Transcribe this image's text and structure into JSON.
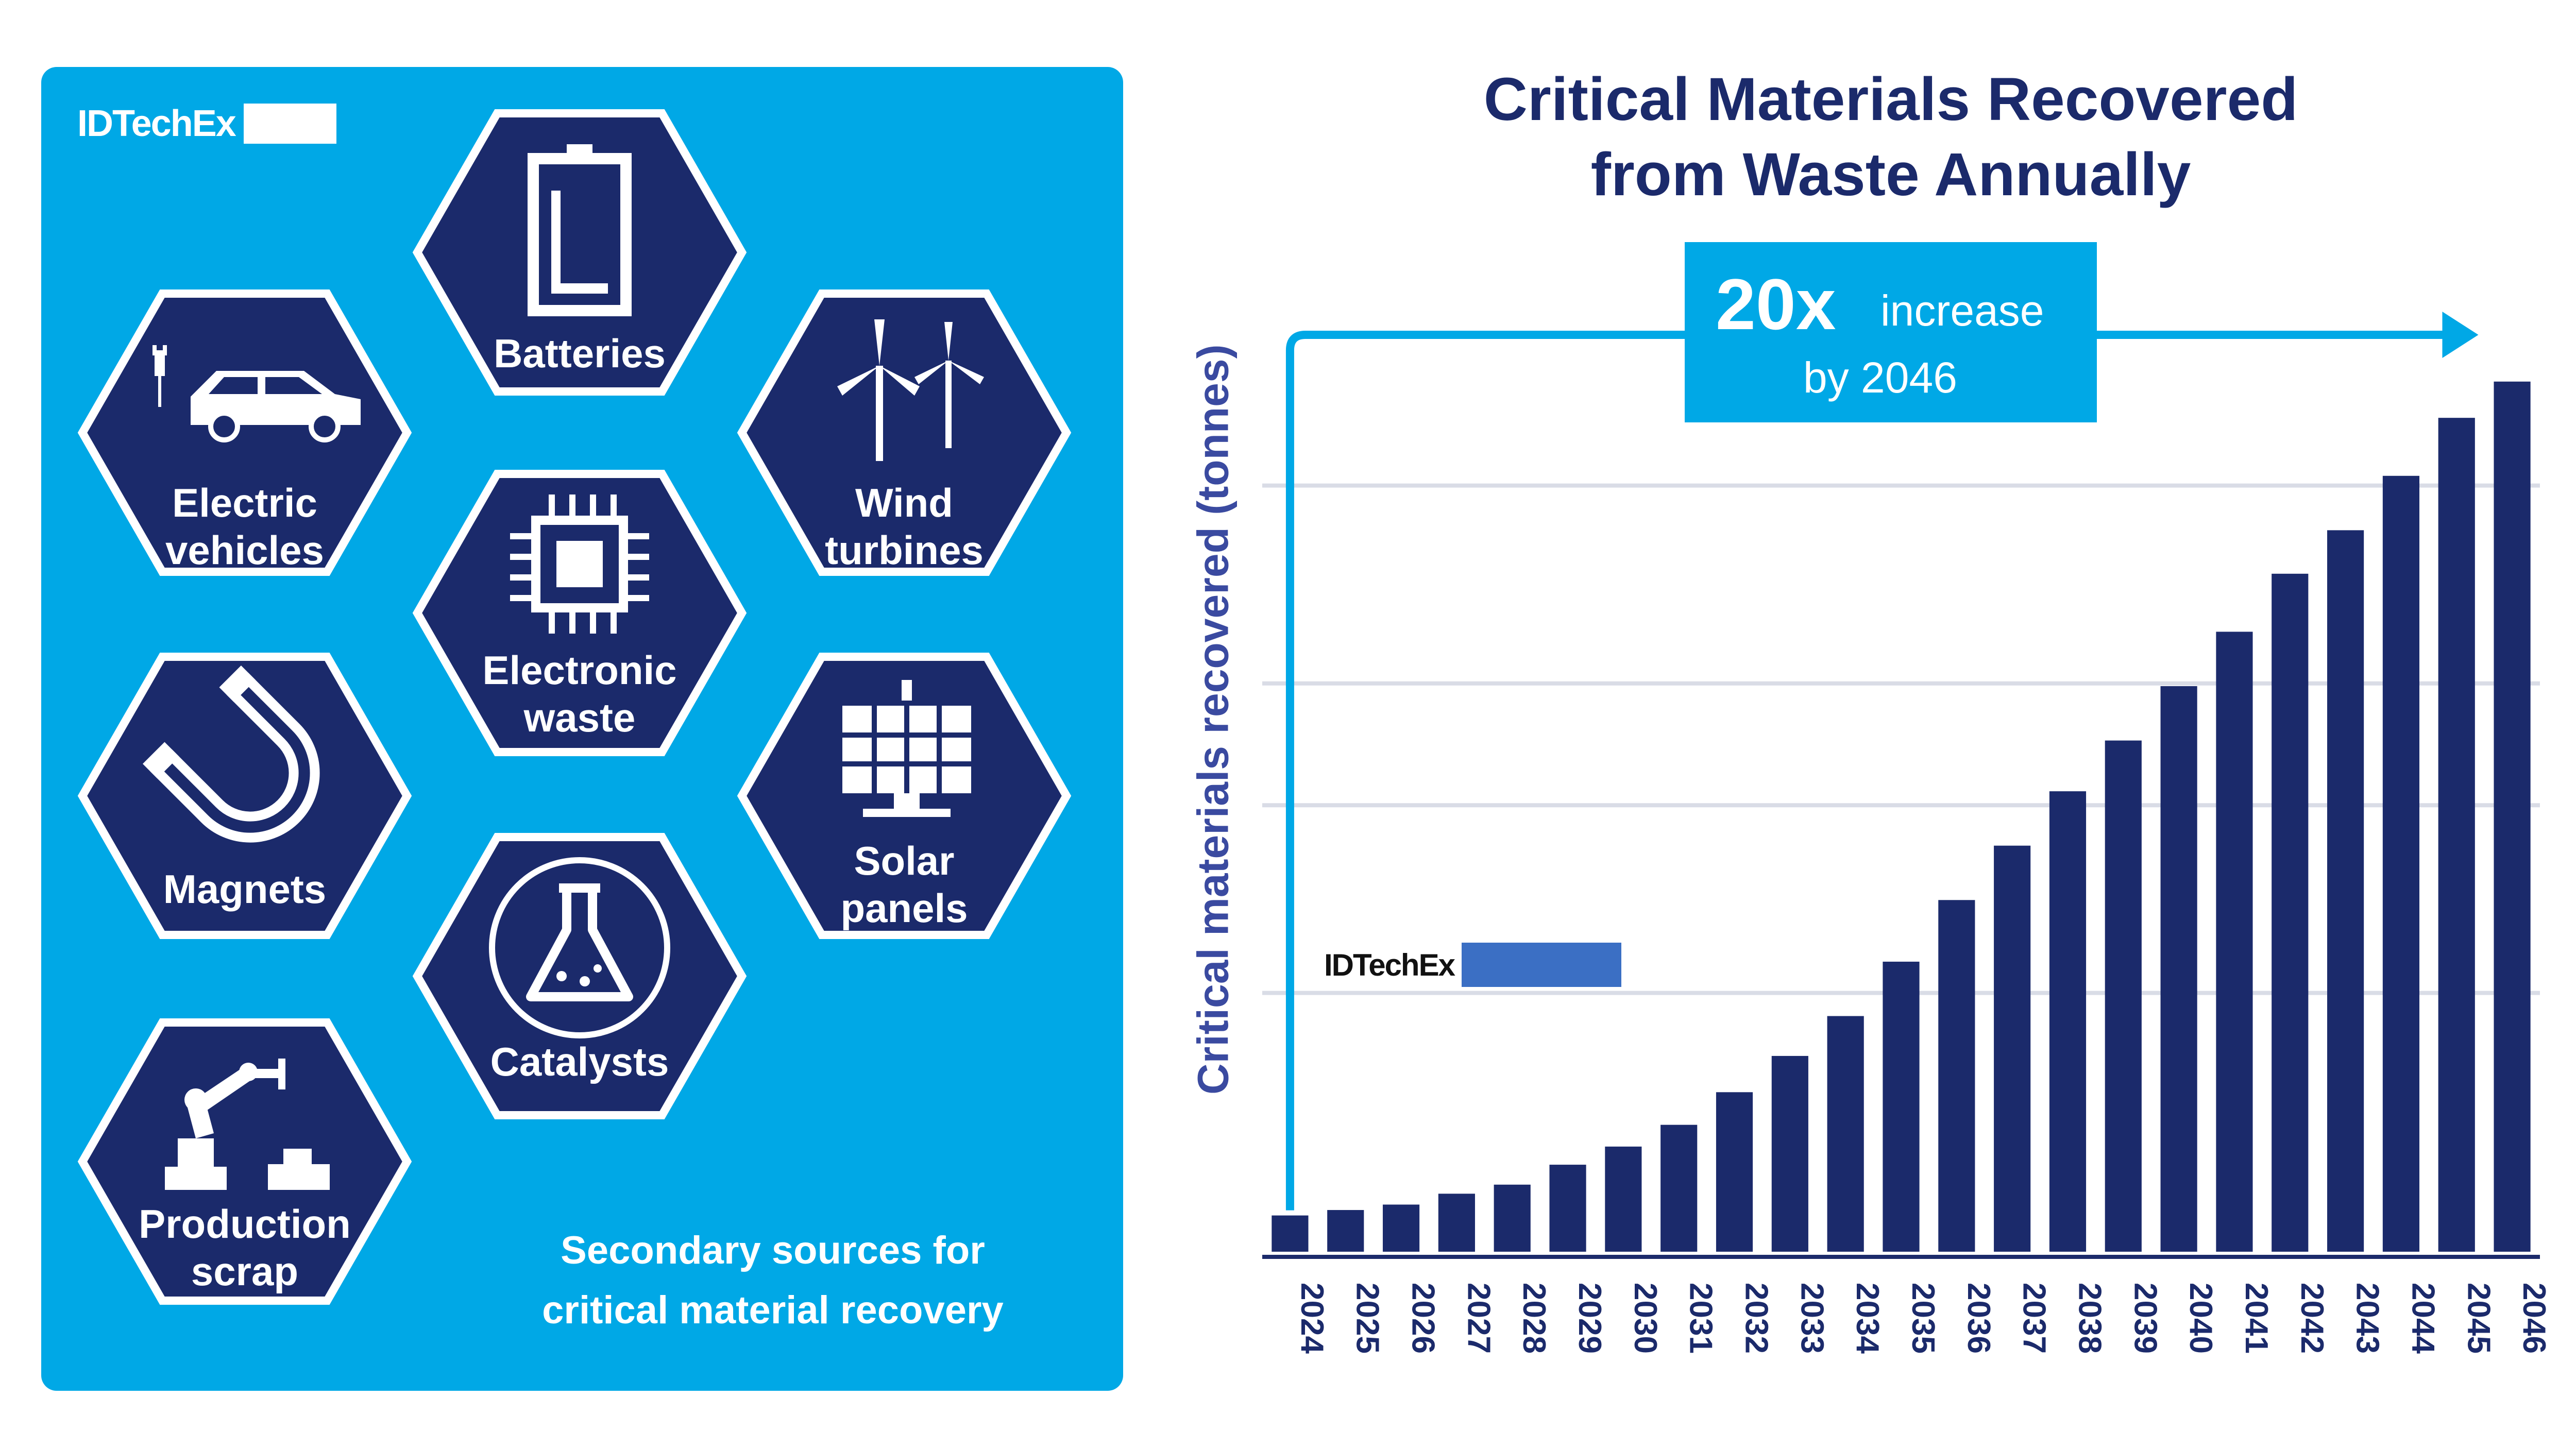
{
  "colors": {
    "panel": "#00a8e6",
    "hex_fill": "#1b2a6b",
    "hex_stroke": "#ffffff",
    "bar": "#1b2a6b",
    "grid": "#d9dce6",
    "callout": "#00a8e6"
  },
  "brand": {
    "name": "IDTechEx",
    "tag": ""
  },
  "infographic": {
    "hexagons": [
      {
        "id": "batteries",
        "label": "Batteries",
        "icon": "battery-icon"
      },
      {
        "id": "electric-vehicles",
        "label": "Electric\nvehicles",
        "icon": "car-icon"
      },
      {
        "id": "wind-turbines",
        "label": "Wind\nturbines",
        "icon": "wind-turbine-icon"
      },
      {
        "id": "electronic-waste",
        "label": "Electronic\nwaste",
        "icon": "chip-icon"
      },
      {
        "id": "magnets",
        "label": "Magnets",
        "icon": "magnet-icon"
      },
      {
        "id": "solar-panels",
        "label": "Solar\npanels",
        "icon": "solar-panel-icon"
      },
      {
        "id": "catalysts",
        "label": "Catalysts",
        "icon": "flask-icon"
      },
      {
        "id": "production-scrap",
        "label": "Production\nscrap",
        "icon": "robot-arm-icon"
      }
    ],
    "caption": "Secondary sources for\ncritical material recovery"
  },
  "chart_data": {
    "type": "bar",
    "title": "Critical Materials Recovered\nfrom Waste Annually",
    "ylabel": "Critical materials recovered (tonnes)",
    "yticks_visible": false,
    "grid": true,
    "callout": {
      "big": "20x",
      "line1": "increase",
      "line2": "by 2046"
    },
    "categories": [
      "2024",
      "2025",
      "2026",
      "2027",
      "2028",
      "2029",
      "2030",
      "2031",
      "2032",
      "2033",
      "2034",
      "2035",
      "2036",
      "2037",
      "2038",
      "2039",
      "2040",
      "2041",
      "2042",
      "2043",
      "2044",
      "2045",
      "2046"
    ],
    "values": [
      1.0,
      1.15,
      1.3,
      1.6,
      1.85,
      2.4,
      2.9,
      3.5,
      4.4,
      5.4,
      6.5,
      8.0,
      9.7,
      11.2,
      12.7,
      14.1,
      15.6,
      17.1,
      18.7,
      19.9,
      21.4,
      23.0,
      24.0
    ],
    "ylim": [
      0,
      26
    ]
  }
}
